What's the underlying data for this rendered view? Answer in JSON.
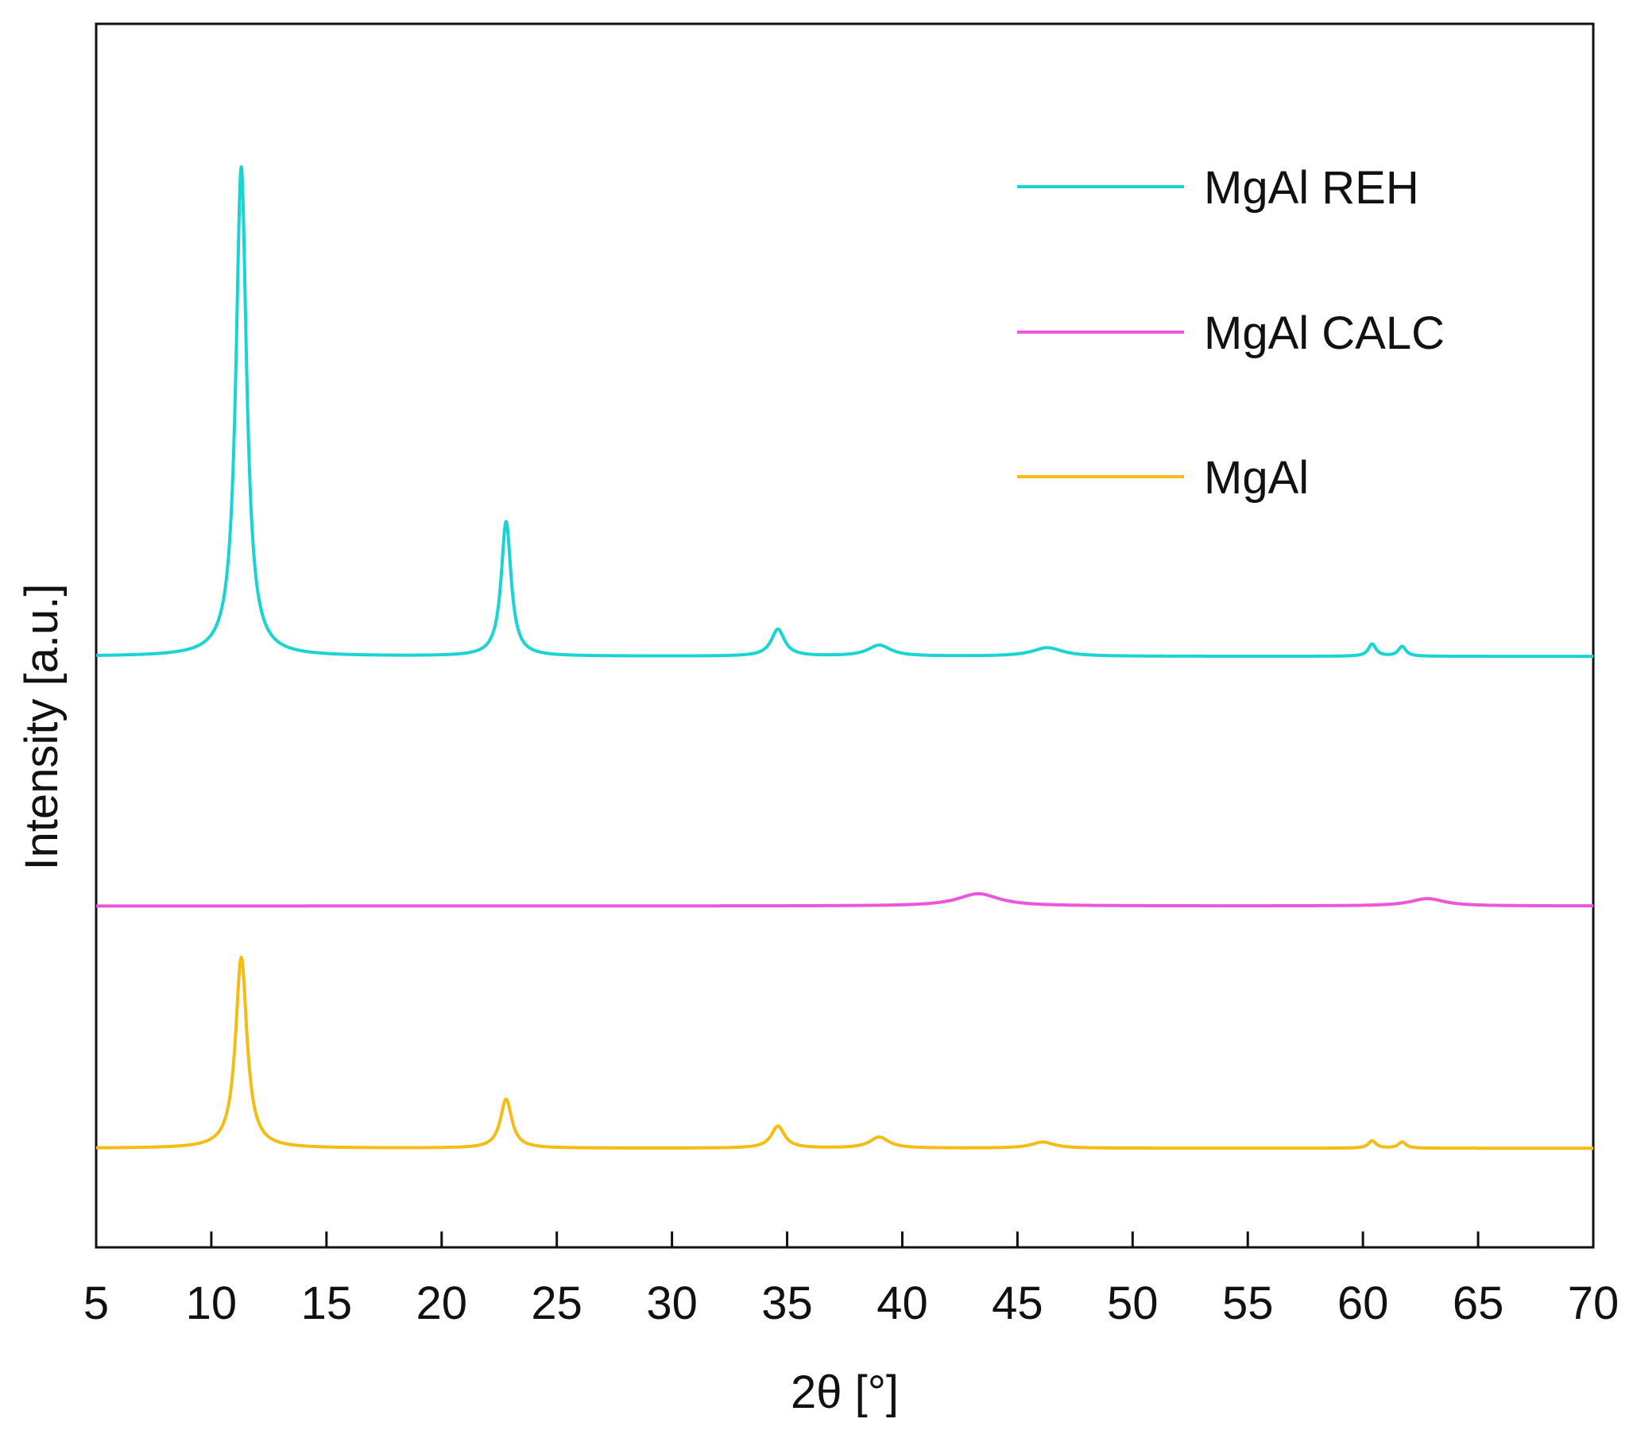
{
  "chart_data": {
    "type": "line",
    "title": "",
    "xlabel": "2θ [°]",
    "ylabel": "Intensity [a.u.]",
    "xlim": [
      5,
      70
    ],
    "ylim": [
      0,
      1
    ],
    "x_ticks": [
      5,
      10,
      15,
      20,
      25,
      30,
      35,
      40,
      45,
      50,
      55,
      60,
      65,
      70
    ],
    "x_tick_labels": [
      "5",
      "10",
      "15",
      "20",
      "25",
      "30",
      "35",
      "40",
      "45",
      "50",
      "55",
      "60",
      "65",
      "70"
    ],
    "y_ticks_shown": false,
    "grid": false,
    "legend_position": "top-right",
    "series": [
      {
        "name": "MgAl REH",
        "color": "#1ad3d3",
        "baseline": 0.483,
        "peaks": [
          {
            "x": 11.3,
            "height": 0.4,
            "width": 0.28
          },
          {
            "x": 22.8,
            "height": 0.11,
            "width": 0.26
          },
          {
            "x": 34.6,
            "height": 0.022,
            "width": 0.35
          },
          {
            "x": 39.0,
            "height": 0.009,
            "width": 0.6
          },
          {
            "x": 46.3,
            "height": 0.007,
            "width": 0.8
          },
          {
            "x": 60.4,
            "height": 0.01,
            "width": 0.2
          },
          {
            "x": 61.7,
            "height": 0.008,
            "width": 0.2
          }
        ]
      },
      {
        "name": "MgAl CALC",
        "color": "#ee55dd",
        "baseline": 0.279,
        "peaks": [
          {
            "x": 43.3,
            "height": 0.01,
            "width": 1.1
          },
          {
            "x": 62.8,
            "height": 0.006,
            "width": 0.9
          }
        ]
      },
      {
        "name": "MgAl",
        "color": "#f5bc14",
        "baseline": 0.081,
        "peaks": [
          {
            "x": 11.3,
            "height": 0.156,
            "width": 0.3
          },
          {
            "x": 22.8,
            "height": 0.04,
            "width": 0.3
          },
          {
            "x": 34.6,
            "height": 0.018,
            "width": 0.35
          },
          {
            "x": 39.0,
            "height": 0.009,
            "width": 0.5
          },
          {
            "x": 46.1,
            "height": 0.005,
            "width": 0.6
          },
          {
            "x": 60.4,
            "height": 0.006,
            "width": 0.2
          },
          {
            "x": 61.7,
            "height": 0.005,
            "width": 0.2
          }
        ]
      }
    ]
  }
}
